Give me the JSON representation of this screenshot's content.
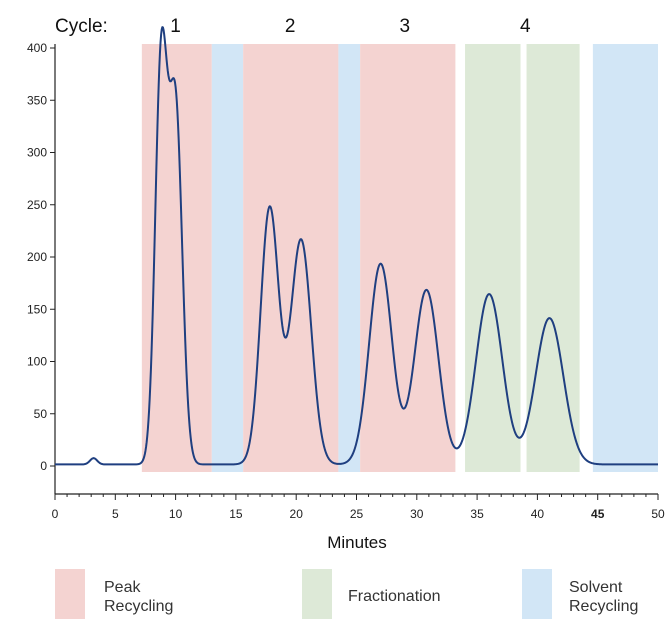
{
  "chart_data": {
    "type": "line",
    "title": "",
    "xlabel": "Minutes",
    "ylabel": "",
    "xlim": [
      0,
      50
    ],
    "ylim": [
      0,
      400
    ],
    "x_ticks": [
      "0",
      "5",
      "10",
      "15",
      "20",
      "25",
      "30",
      "35",
      "40",
      "45",
      "50"
    ],
    "y_ticks": [
      "0",
      "50",
      "100",
      "150",
      "200",
      "250",
      "300",
      "350",
      "400"
    ],
    "cycle_title": "Cycle:",
    "cycles": [
      {
        "label": "1",
        "x": 10
      },
      {
        "label": "2",
        "x": 19.5
      },
      {
        "label": "3",
        "x": 29
      },
      {
        "label": "4",
        "x": 39
      }
    ],
    "regions": [
      {
        "type": "peak",
        "x0": 7.2,
        "x1": 13.0
      },
      {
        "type": "solvent",
        "x0": 13.0,
        "x1": 15.6
      },
      {
        "type": "peak",
        "x0": 15.6,
        "x1": 23.5
      },
      {
        "type": "solvent",
        "x0": 23.5,
        "x1": 25.3
      },
      {
        "type": "peak",
        "x0": 25.3,
        "x1": 33.2
      },
      {
        "type": "fraction",
        "x0": 34.0,
        "x1": 38.6
      },
      {
        "type": "fraction",
        "x0": 39.1,
        "x1": 43.5
      },
      {
        "type": "solvent",
        "x0": 44.6,
        "x1": 50.0
      }
    ],
    "peaks": [
      {
        "x": 8.8,
        "y": 380,
        "w": 0.5
      },
      {
        "x": 10.0,
        "y": 340,
        "w": 0.55
      },
      {
        "x": 17.8,
        "y": 245,
        "w": 0.75
      },
      {
        "x": 20.4,
        "y": 215,
        "w": 0.85
      },
      {
        "x": 27.0,
        "y": 192,
        "w": 0.95
      },
      {
        "x": 30.8,
        "y": 167,
        "w": 1.0
      },
      {
        "x": 36.0,
        "y": 163,
        "w": 1.1
      },
      {
        "x": 41.0,
        "y": 140,
        "w": 1.15
      }
    ],
    "baseline": 1.5,
    "small_bump": {
      "x": 3.2,
      "y": 6,
      "w": 0.3
    },
    "series": [
      {
        "name": "",
        "color": "#1f3f80"
      }
    ],
    "legend": [
      {
        "key": "peak",
        "label_lines": [
          "Peak",
          "Recycling"
        ],
        "color": "#f4d3d1"
      },
      {
        "key": "fraction",
        "label_lines": [
          "Fractionation"
        ],
        "color": "#dde9d7"
      },
      {
        "key": "solvent",
        "label_lines": [
          "Solvent",
          "Recycling"
        ],
        "color": "#d2e6f6"
      }
    ]
  },
  "colors": {
    "peak": "#f4d3d1",
    "fraction": "#dde9d7",
    "solvent": "#d2e6f6",
    "trace": "#1f3f80",
    "axis": "#222222"
  }
}
